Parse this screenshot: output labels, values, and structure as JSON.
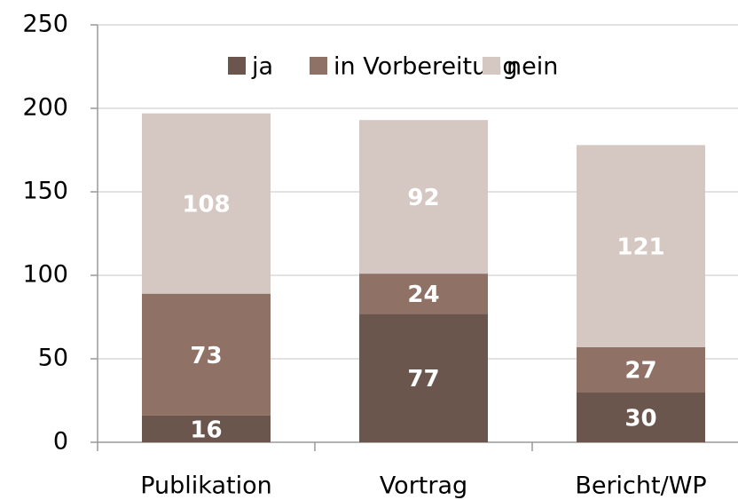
{
  "chart_data": {
    "type": "bar",
    "stacked": true,
    "categories": [
      "Publikation",
      "Vortrag",
      "Bericht/WP"
    ],
    "series": [
      {
        "name": "ja",
        "color": "#6b564e",
        "values": [
          16,
          77,
          30
        ]
      },
      {
        "name": "in Vorbereitung",
        "color": "#8f7166",
        "values": [
          73,
          24,
          27
        ]
      },
      {
        "name": "nein",
        "color": "#d5c8c3",
        "values": [
          108,
          92,
          121
        ]
      }
    ],
    "ylim": [
      0,
      250
    ],
    "yticks": [
      0,
      50,
      100,
      150,
      200,
      250
    ],
    "grid": true,
    "legend": "top"
  }
}
